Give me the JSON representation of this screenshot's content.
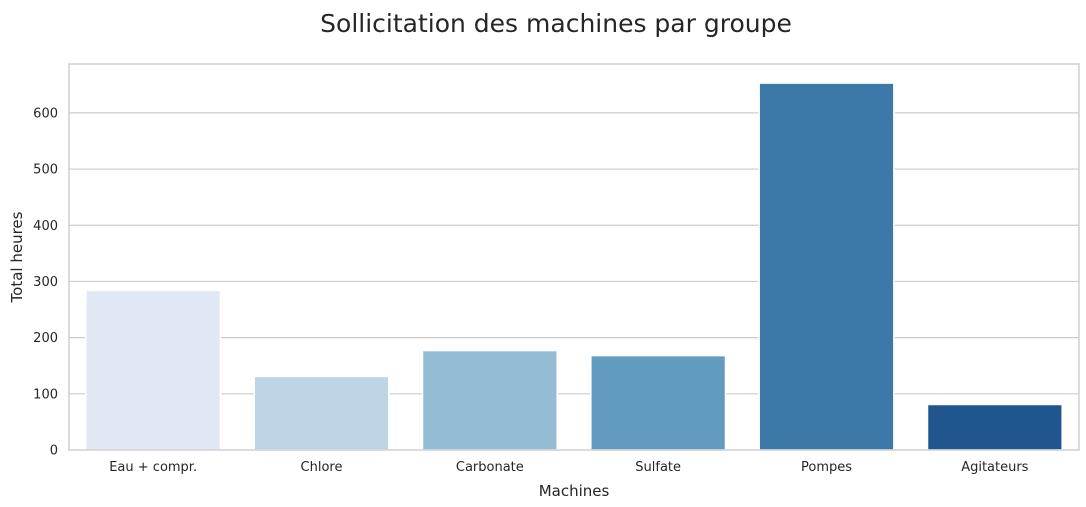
{
  "chart_data": {
    "type": "bar",
    "title": "Sollicitation des machines par groupe",
    "xlabel": "Machines",
    "ylabel": "Total heures",
    "categories": [
      "Eau + compr.",
      "Chlore",
      "Carbonate",
      "Sulfate",
      "Pompes",
      "Agitateurs"
    ],
    "values": [
      284,
      131,
      177,
      168,
      653,
      81
    ],
    "colors": [
      "#dfe8f4",
      "#bfd5e6",
      "#94bcd5",
      "#629bc0",
      "#3d79a8",
      "#21558d"
    ],
    "ylim": [
      0,
      687
    ],
    "yticks": [
      0,
      100,
      200,
      300,
      400,
      500,
      600
    ],
    "grid": true,
    "legend": "none"
  }
}
